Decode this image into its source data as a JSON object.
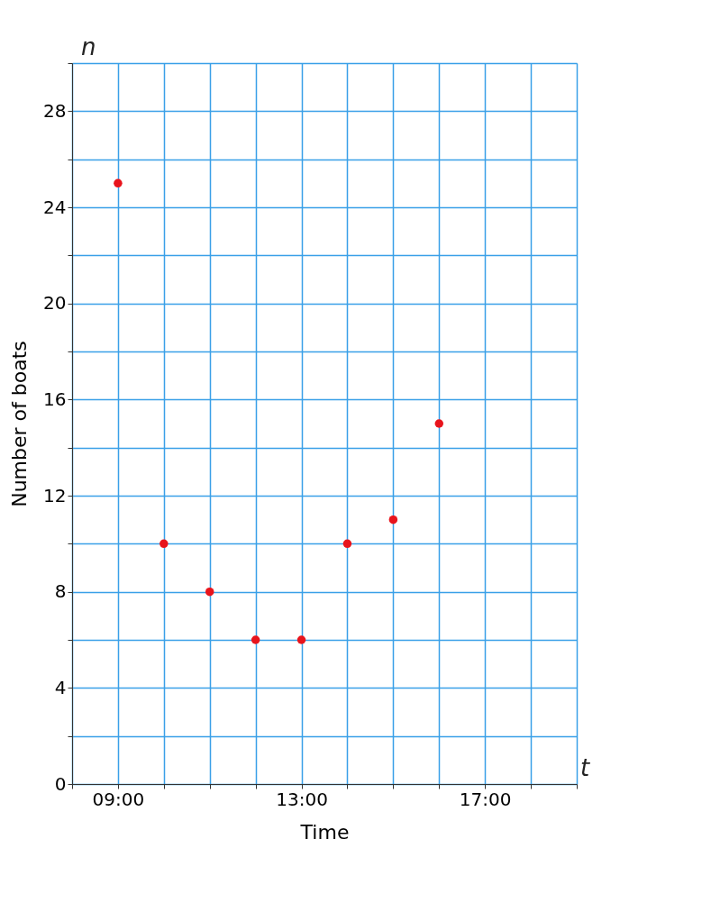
{
  "chart_data": {
    "type": "scatter",
    "xlabel": "Time",
    "ylabel": "Number of boats",
    "x": [
      9,
      10,
      11,
      12,
      13,
      14,
      15,
      16
    ],
    "series": [
      {
        "color": "#e8141c",
        "values": [
          25,
          10,
          8,
          6,
          6,
          10,
          11,
          15
        ]
      }
    ],
    "xlim": [
      8,
      19
    ],
    "ylim": [
      0,
      30
    ],
    "xticks": [
      {
        "value": 8,
        "label": null
      },
      {
        "value": 9,
        "label": "09:00"
      },
      {
        "value": 10,
        "label": null
      },
      {
        "value": 11,
        "label": null
      },
      {
        "value": 12,
        "label": null
      },
      {
        "value": 13,
        "label": "13:00"
      },
      {
        "value": 14,
        "label": null
      },
      {
        "value": 15,
        "label": null
      },
      {
        "value": 16,
        "label": null
      },
      {
        "value": 17,
        "label": "17:00"
      },
      {
        "value": 18,
        "label": null
      },
      {
        "value": 19,
        "label": null
      }
    ],
    "yticks": [
      0,
      {
        "value": 2,
        "label": null
      },
      4,
      {
        "value": 6,
        "label": null
      },
      8,
      {
        "value": 10,
        "label": null
      },
      12,
      {
        "value": 14,
        "label": null
      },
      16,
      {
        "value": 18,
        "label": null
      },
      20,
      {
        "value": 22,
        "label": null
      },
      24,
      {
        "value": 26,
        "label": null
      },
      28,
      {
        "value": 30,
        "label": null
      }
    ],
    "grid": true,
    "marker": "circle",
    "annotations": [
      "n",
      "t"
    ]
  }
}
